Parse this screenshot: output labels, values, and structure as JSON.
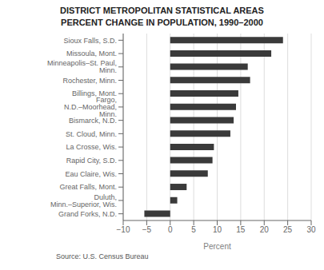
{
  "chart_data": {
    "type": "bar",
    "orientation": "horizontal",
    "title": "DISTRICT METROPOLITAN STATISTICAL AREAS\nPERCENT CHANGE IN POPULATION, 1990–2000",
    "categories": [
      "Grand Forks, N.D.",
      "Duluth, Minn.–Superior, Wis.",
      "Great Falls, Mont.",
      "Eau Claire, Wis.",
      "Rapid City, S.D.",
      "La Crosse, Wis.",
      "St. Cloud, Minn.",
      "Bismarck, N.D.",
      "Fargo, N.D.–Moorhead, Minn.",
      "Billings, Mont.",
      "Rochester, Minn.",
      "Minneapolis–St. Paul, Minn.",
      "Missoula, Mont.",
      "Sioux Falls, S.D."
    ],
    "values": [
      -5.5,
      1.5,
      3.5,
      8.0,
      9.0,
      9.3,
      12.8,
      13.5,
      14.0,
      14.5,
      17.0,
      16.5,
      21.5,
      24.0
    ],
    "color": "#3a3a3a",
    "xlabel": "Percent",
    "annotations": [
      "Source: U.S. Census Bureau"
    ],
    "xlim": [
      -10,
      30
    ],
    "xticks": [
      {
        "value": -10,
        "label": "−10"
      },
      {
        "value": -5,
        "label": "−5"
      },
      0,
      5,
      10,
      15,
      20,
      25,
      30
    ],
    "grid": true
  }
}
